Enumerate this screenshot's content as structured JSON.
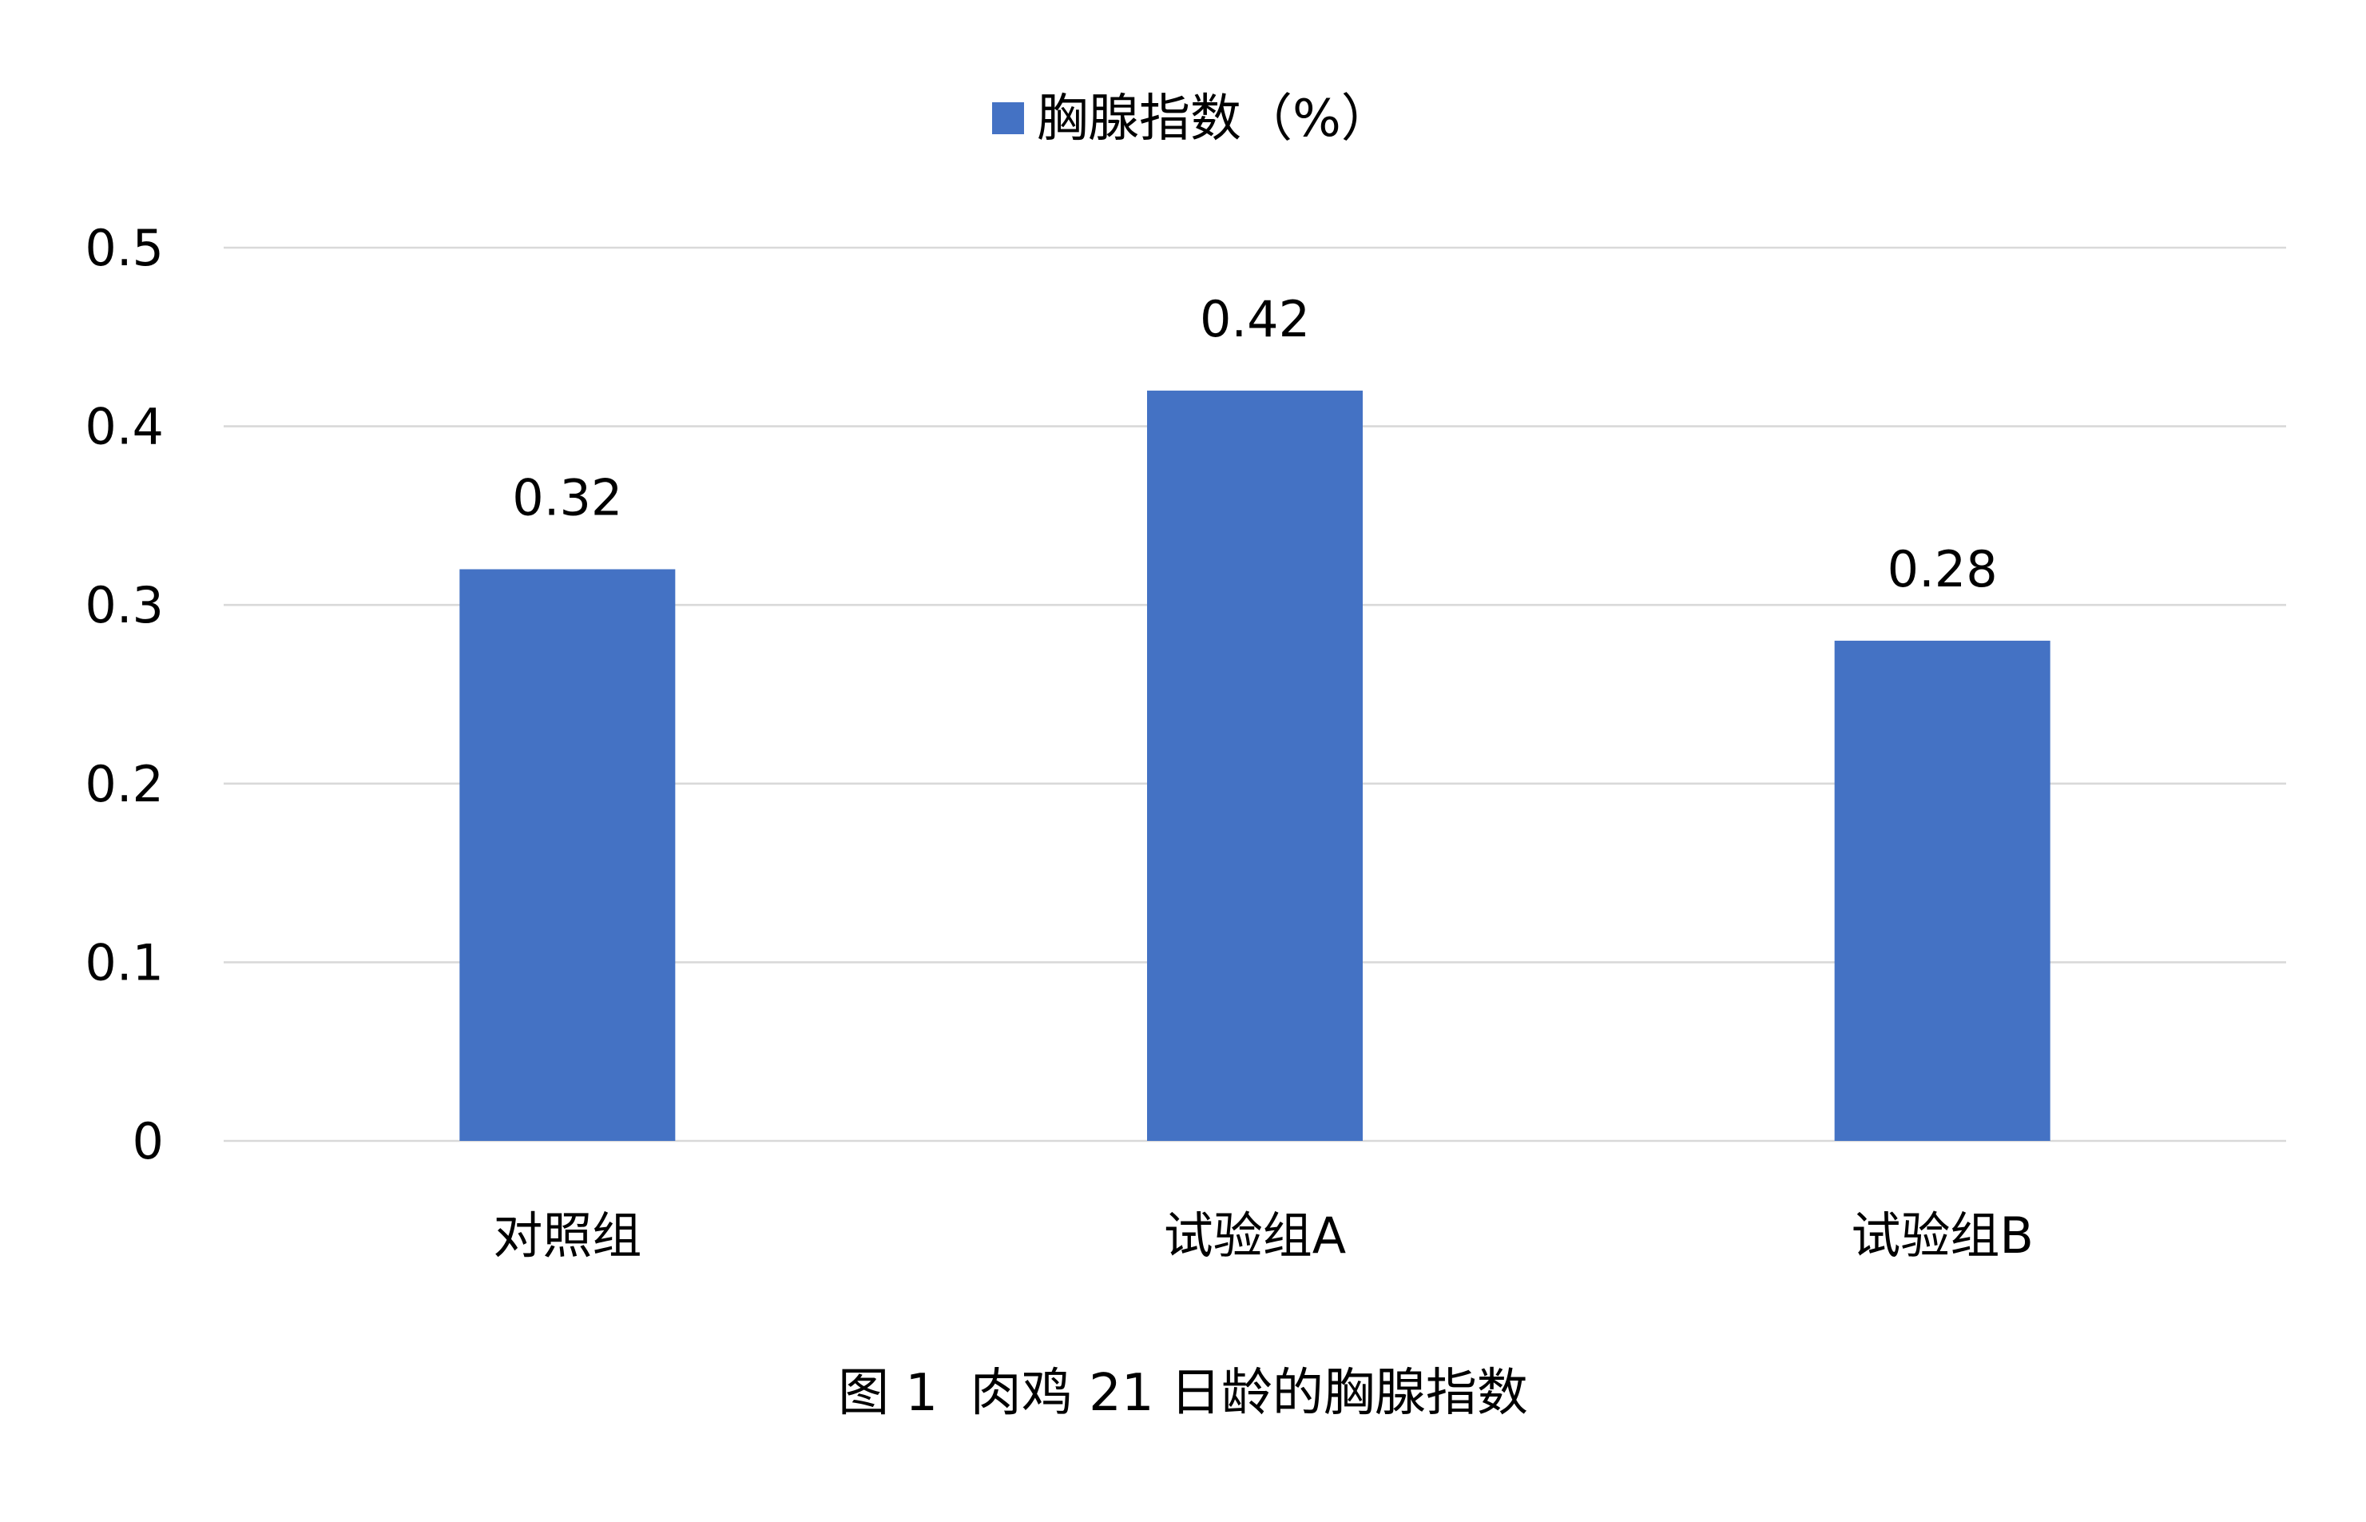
{
  "chart_data": {
    "type": "bar",
    "title": "",
    "xlabel": "",
    "ylabel": "",
    "categories": [
      "对照组",
      "试验组A",
      "试验组B"
    ],
    "series": [
      {
        "name": "胸腺指数（%）",
        "color": "#4472c4",
        "values": [
          0.32,
          0.42,
          0.28
        ],
        "data_labels": [
          "0.32",
          "0.42",
          "0.28"
        ]
      }
    ],
    "ylim": [
      0,
      0.5
    ],
    "yticks": [
      0,
      0.1,
      0.2,
      0.3,
      0.4,
      0.5
    ],
    "ytick_labels": [
      "0",
      "0.1",
      "0.2",
      "0.3",
      "0.4",
      "0.5"
    ],
    "grid": true,
    "legend": "top-center"
  },
  "caption": "图 1  肉鸡 21 日龄的胸腺指数"
}
